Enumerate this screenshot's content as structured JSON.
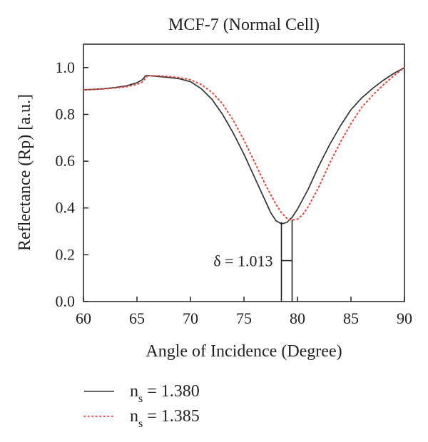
{
  "chart_data": {
    "type": "line",
    "title": "MCF-7 (Normal Cell)",
    "xlabel": "Angle of Incidence (Degree)",
    "ylabel": "Reflectance (Rp) [a.u.]",
    "xlim": [
      60,
      90
    ],
    "ylim": [
      0.0,
      1.1
    ],
    "xticks": [
      60,
      65,
      70,
      75,
      80,
      85,
      90
    ],
    "yticks": [
      0.0,
      0.2,
      0.4,
      0.6,
      0.8,
      1.0
    ],
    "xtick_labels": [
      "60",
      "65",
      "70",
      "75",
      "80",
      "85",
      "90"
    ],
    "ytick_labels": [
      "0.0",
      "0.2",
      "0.4",
      "0.6",
      "0.8",
      "1.0"
    ],
    "grid": false,
    "legend_position": "bottom-left, below plot",
    "series": [
      {
        "name_main": "n",
        "name_sub": "s",
        "name_value": " = 1.380",
        "color": "#333333",
        "style": "solid",
        "x": [
          60,
          61,
          62,
          63,
          64,
          65,
          65.5,
          65.8,
          66,
          67,
          68,
          69,
          70,
          71,
          72,
          73,
          74,
          75,
          76,
          77,
          77.5,
          78,
          78.5,
          79,
          79.5,
          80,
          81,
          82,
          83,
          84,
          85,
          86,
          87,
          88,
          89,
          90
        ],
        "y": [
          0.905,
          0.907,
          0.91,
          0.915,
          0.922,
          0.935,
          0.948,
          0.965,
          0.966,
          0.962,
          0.958,
          0.952,
          0.94,
          0.91,
          0.865,
          0.8,
          0.72,
          0.63,
          0.53,
          0.43,
          0.38,
          0.345,
          0.332,
          0.338,
          0.36,
          0.395,
          0.48,
          0.58,
          0.67,
          0.75,
          0.82,
          0.87,
          0.91,
          0.945,
          0.975,
          1.0
        ]
      },
      {
        "name_main": "n",
        "name_sub": "s",
        "name_value": " = 1.385",
        "color": "#e8453a",
        "style": "dotted",
        "x": [
          60,
          61,
          62,
          63,
          64,
          65,
          65.5,
          65.8,
          66,
          67,
          68,
          69,
          70,
          71,
          72,
          73,
          74,
          75,
          76,
          77,
          78,
          78.5,
          79,
          79.5,
          80,
          80.5,
          81,
          82,
          83,
          84,
          85,
          86,
          87,
          88,
          89,
          90
        ],
        "y": [
          0.905,
          0.907,
          0.909,
          0.913,
          0.918,
          0.928,
          0.938,
          0.955,
          0.965,
          0.965,
          0.962,
          0.957,
          0.948,
          0.928,
          0.895,
          0.845,
          0.775,
          0.69,
          0.595,
          0.5,
          0.415,
          0.38,
          0.356,
          0.348,
          0.352,
          0.372,
          0.405,
          0.49,
          0.59,
          0.68,
          0.76,
          0.83,
          0.88,
          0.925,
          0.965,
          1.0
        ]
      }
    ],
    "annotation": {
      "label": "δ = 1.013",
      "x1": 78.5,
      "x2": 79.5,
      "y_arrow": 0.175
    }
  }
}
